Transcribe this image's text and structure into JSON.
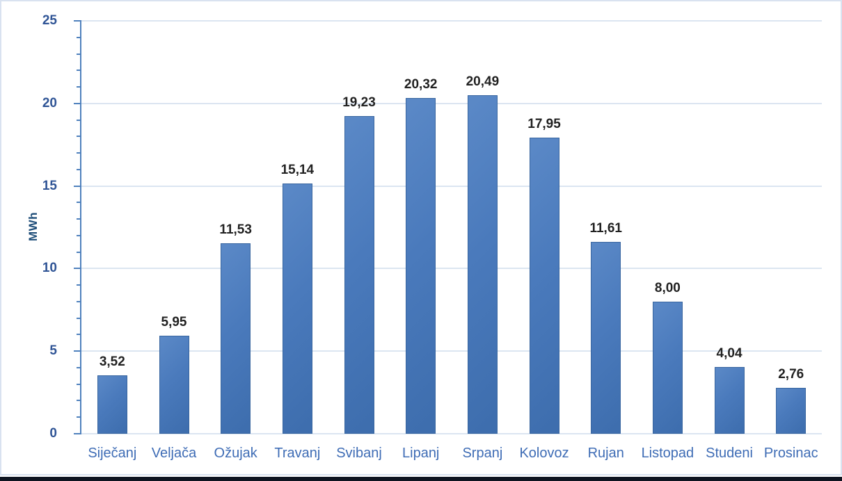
{
  "chart_data": {
    "type": "bar",
    "title": "",
    "xlabel": "",
    "ylabel": "MWh",
    "categories": [
      "Siječanj",
      "Veljača",
      "Ožujak",
      "Travanj",
      "Svibanj",
      "Lipanj",
      "Srpanj",
      "Kolovoz",
      "Rujan",
      "Listopad",
      "Studeni",
      "Prosinac"
    ],
    "values": [
      3.52,
      5.95,
      11.53,
      15.14,
      19.23,
      20.32,
      20.49,
      17.95,
      11.61,
      8.0,
      4.04,
      2.76
    ],
    "value_labels": [
      "3,52",
      "5,95",
      "11,53",
      "15,14",
      "19,23",
      "20,32",
      "20,49",
      "17,95",
      "11,61",
      "8,00",
      "4,04",
      "2,76"
    ],
    "series_name": "MWh",
    "ylim": [
      0,
      25
    ],
    "y_major_ticks": [
      0,
      5,
      10,
      15,
      20,
      25
    ],
    "y_minor_tick_step": 1,
    "grid": "horizontal-major",
    "legend": "none",
    "colors": {
      "bar_light": "#5b89c7",
      "bar_mid": "#4a7abc",
      "bar_dark": "#3d6dad",
      "bar_border": "#38659f",
      "axis": "#4f81bd",
      "gridline": "#dbe5f1",
      "tick_label": "#305596",
      "month_label": "#3e6cb5",
      "data_label": "#212121",
      "ylabel": "#1f4e79",
      "figure_border": "#d9e2f0",
      "bottom_rule": "#0e1420"
    }
  }
}
